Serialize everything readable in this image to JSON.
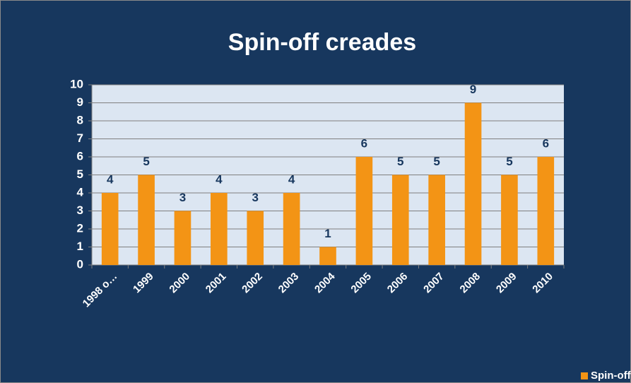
{
  "chart_data": {
    "type": "bar",
    "title": "Spin-off creades",
    "categories": [
      "1998 o…",
      "1999",
      "2000",
      "2001",
      "2002",
      "2003",
      "2004",
      "2005",
      "2006",
      "2007",
      "2008",
      "2009",
      "2010"
    ],
    "series": [
      {
        "name": "Spin-off creades",
        "color": "#f39415",
        "values": [
          4,
          5,
          3,
          4,
          3,
          4,
          1,
          6,
          5,
          5,
          9,
          5,
          6
        ]
      }
    ],
    "ylim": [
      0,
      10
    ],
    "yticks": [
      0,
      1,
      2,
      3,
      4,
      5,
      6,
      7,
      8,
      9,
      10
    ],
    "grid": true,
    "legend": "bottom-right"
  }
}
